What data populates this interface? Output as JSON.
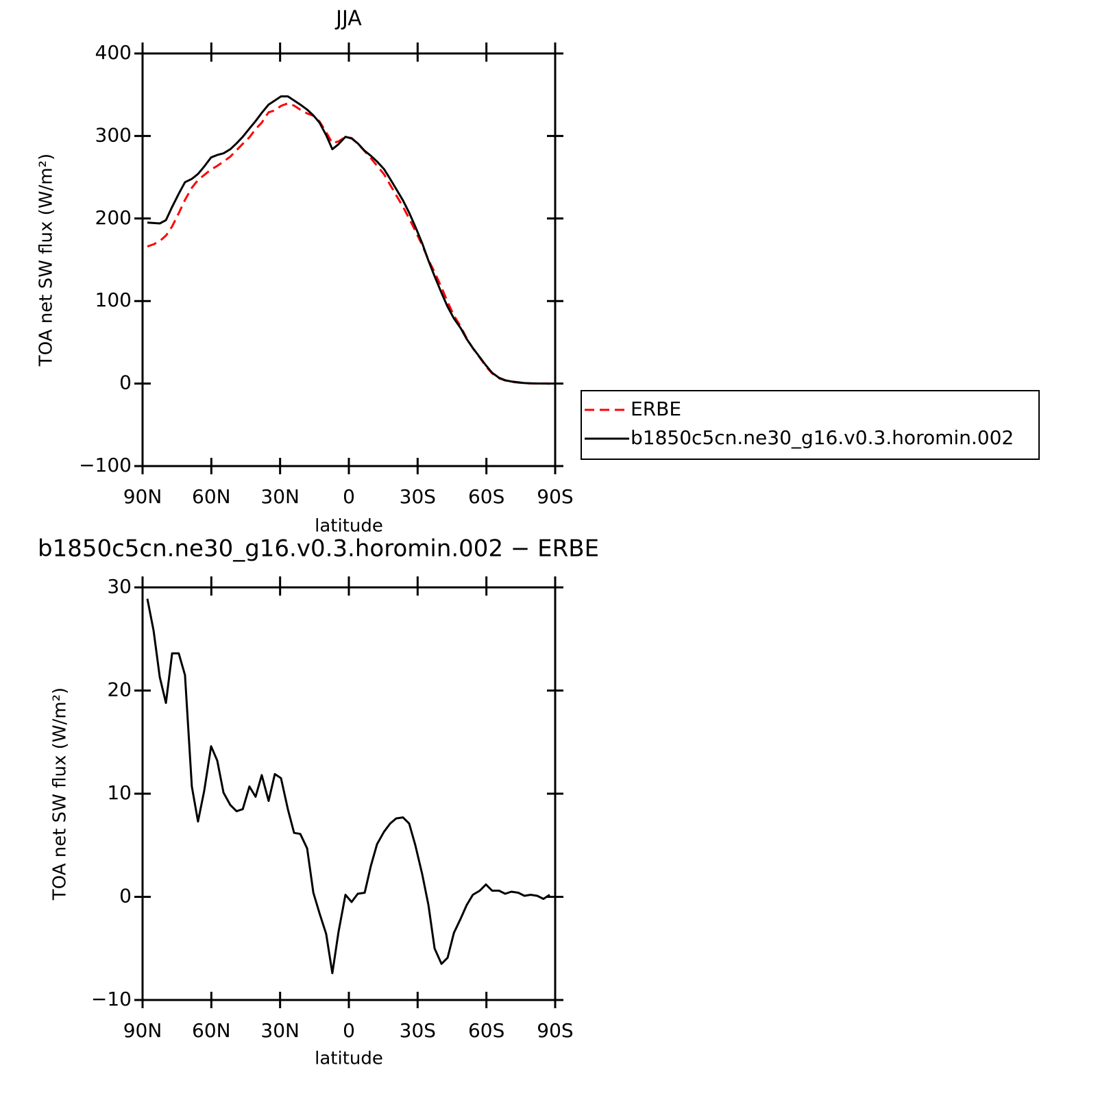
{
  "chart_data": [
    {
      "type": "line",
      "title": "JJA",
      "ylabel": "TOA net SW flux (W/m²)",
      "xlabel": "latitude",
      "x": [
        87.9,
        85.2,
        82.5,
        79.8,
        77.1,
        74.2,
        71.5,
        68.5,
        65.8,
        63.1,
        60.1,
        57.4,
        54.7,
        51.7,
        49.0,
        46.3,
        43.4,
        40.7,
        38.0,
        35.0,
        32.3,
        29.6,
        26.6,
        23.9,
        21.2,
        18.2,
        15.5,
        12.8,
        9.9,
        7.2,
        4.5,
        1.5,
        -1.2,
        -3.9,
        -6.9,
        -9.6,
        -12.3,
        -15.3,
        -18.0,
        -20.6,
        -23.6,
        -26.3,
        -29.0,
        -32.0,
        -34.7,
        -37.4,
        -40.4,
        -43.1,
        -45.8,
        -48.8,
        -51.4,
        -54.1,
        -57.1,
        -59.8,
        -62.5,
        -65.5,
        -68.2,
        -70.9,
        -73.9,
        -76.6,
        -79.3,
        -82.2,
        -84.9,
        -87.6
      ],
      "series": [
        {
          "name": "ERBE",
          "color": "#ff0000",
          "dashed": true,
          "values": [
            166.1,
            168.7,
            172.7,
            179.2,
            190.4,
            206.4,
            222.5,
            237.3,
            246.7,
            252.7,
            259.4,
            263.8,
            268.9,
            275.1,
            282.7,
            290.5,
            298.3,
            308.3,
            316.2,
            328.7,
            331.1,
            336.5,
            339.5,
            336.8,
            331.9,
            327.3,
            324.6,
            317.6,
            304.6,
            291.4,
            293.4,
            298.8,
            297.5,
            290.7,
            281.6,
            273,
            263.9,
            253.7,
            240.9,
            228.4,
            214.3,
            199.9,
            185,
            167.8,
            149.8,
            135,
            116.5,
            98.9,
            82.5,
            69.1,
            54.8,
            42.8,
            31.4,
            20.8,
            12.4,
            6.4,
            3.7,
            2,
            1.1,
            0.5,
            0.1,
            0,
            0.2,
            -0.2
          ]
        },
        {
          "name": "b1850c5cn.ne30_g16.v0.3.horomin.002",
          "color": "#000000",
          "dashed": false,
          "values": [
            195,
            194.5,
            194,
            198,
            214,
            230,
            244,
            248,
            254,
            263,
            274,
            277,
            279,
            284,
            291,
            299,
            309,
            318,
            328,
            338,
            343,
            348,
            348,
            343,
            338,
            332,
            325,
            316,
            301,
            284,
            290,
            299,
            297,
            291,
            282,
            276,
            269,
            260,
            248,
            236,
            222,
            207,
            190,
            170,
            149,
            130,
            110,
            93,
            79,
            67,
            54,
            43,
            32,
            22,
            13,
            7,
            4,
            2.5,
            1.5,
            0.6,
            0.3,
            0.1,
            0,
            0
          ]
        }
      ],
      "xlim": [
        90,
        -90
      ],
      "xticks": [
        {
          "value": 90,
          "label": "90N"
        },
        {
          "value": 60,
          "label": "60N"
        },
        {
          "value": 30,
          "label": "30N"
        },
        0,
        {
          "value": -30,
          "label": "30S"
        },
        {
          "value": -60,
          "label": "60S"
        },
        {
          "value": -90,
          "label": "90S"
        }
      ],
      "ylim": [
        -100,
        400
      ],
      "yticks": [
        {
          "value": -100,
          "label": "−100"
        },
        0,
        100,
        200,
        300,
        400
      ],
      "legend": "right"
    },
    {
      "type": "line",
      "title": "b1850c5cn.ne30_g16.v0.3.horomin.002 − ERBE",
      "ylabel": "TOA net SW flux (W/m²)",
      "xlabel": "latitude",
      "x": [
        87.9,
        85.2,
        82.5,
        79.8,
        77.1,
        74.2,
        71.5,
        68.5,
        65.8,
        63.1,
        60.1,
        57.4,
        54.7,
        51.7,
        49.0,
        46.3,
        43.4,
        40.7,
        38.0,
        35.0,
        32.3,
        29.6,
        26.6,
        23.9,
        21.2,
        18.2,
        15.5,
        12.8,
        9.9,
        7.2,
        4.5,
        1.5,
        -1.2,
        -3.9,
        -6.9,
        -9.6,
        -12.3,
        -15.3,
        -18.0,
        -20.6,
        -23.6,
        -26.3,
        -29.0,
        -32.0,
        -34.7,
        -37.4,
        -40.4,
        -43.1,
        -45.8,
        -48.8,
        -51.4,
        -54.1,
        -57.1,
        -59.8,
        -62.5,
        -65.5,
        -68.2,
        -70.9,
        -73.9,
        -76.6,
        -79.3,
        -82.2,
        -84.9,
        -87.6
      ],
      "series": [
        {
          "color": "#000000",
          "dashed": false,
          "values": [
            28.9,
            25.8,
            21.3,
            18.8,
            23.6,
            23.6,
            21.5,
            10.7,
            7.3,
            10.3,
            14.6,
            13.2,
            10.1,
            8.9,
            8.3,
            8.5,
            10.7,
            9.7,
            11.8,
            9.3,
            11.9,
            11.5,
            8.5,
            6.2,
            6.1,
            4.7,
            0.4,
            -1.6,
            -3.6,
            -7.4,
            -3.4,
            0.2,
            -0.5,
            0.3,
            0.4,
            3.0,
            5.1,
            6.3,
            7.1,
            7.6,
            7.7,
            7.1,
            5.0,
            2.2,
            -0.8,
            -5.0,
            -6.5,
            -5.9,
            -3.5,
            -2.1,
            -0.8,
            0.2,
            0.6,
            1.2,
            0.6,
            0.6,
            0.3,
            0.5,
            0.4,
            0.1,
            0.2,
            0.1,
            -0.2,
            0.2
          ]
        }
      ],
      "xlim": [
        90,
        -90
      ],
      "xticks": [
        {
          "value": 90,
          "label": "90N"
        },
        {
          "value": 60,
          "label": "60N"
        },
        {
          "value": 30,
          "label": "30N"
        },
        0,
        {
          "value": -30,
          "label": "30S"
        },
        {
          "value": -60,
          "label": "60S"
        },
        {
          "value": -90,
          "label": "90S"
        }
      ],
      "ylim": [
        -10,
        30
      ],
      "yticks": [
        {
          "value": -10,
          "label": "−10"
        },
        0,
        10,
        20,
        30
      ]
    }
  ]
}
